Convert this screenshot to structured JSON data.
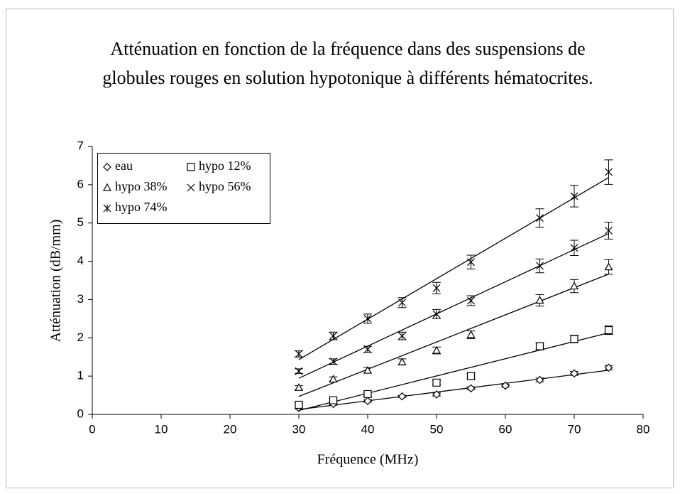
{
  "chart_data": {
    "type": "scatter",
    "title": "Atténuation en fonction de la fréquence dans des suspensions de globules rouges en solution hypotonique à différents hématocrites.",
    "xlabel": "Fréquence (MHz)",
    "ylabel": "Atténuation (dB/mm)",
    "xlim": [
      0,
      80
    ],
    "xticks": [
      0,
      10,
      20,
      30,
      40,
      50,
      60,
      70,
      80
    ],
    "ylim": [
      0,
      7
    ],
    "yticks": [
      0,
      1,
      2,
      3,
      4,
      5,
      6,
      7
    ],
    "trendline": "linear",
    "legend": "upper left",
    "color": "#000000",
    "series": [
      {
        "name": "eau",
        "marker": "diamond",
        "x": [
          30,
          35,
          40,
          45,
          50,
          55,
          60,
          65,
          70,
          75
        ],
        "values": [
          0.17,
          0.27,
          0.35,
          0.47,
          0.52,
          0.68,
          0.75,
          0.9,
          1.07,
          1.22
        ],
        "errors": [
          0.03,
          0.03,
          0.03,
          0.03,
          0.04,
          0.04,
          0.04,
          0.05,
          0.05,
          0.06
        ]
      },
      {
        "name": "hypo 12%",
        "marker": "square",
        "x": [
          30,
          35,
          40,
          50,
          55,
          65,
          70,
          75
        ],
        "values": [
          0.25,
          0.37,
          0.53,
          0.83,
          1.0,
          1.78,
          1.97,
          2.2
        ],
        "errors": [
          0.04,
          0.04,
          0.05,
          0.06,
          0.07,
          0.09,
          0.1,
          0.11
        ]
      },
      {
        "name": "hypo 38%",
        "marker": "triangle",
        "x": [
          30,
          35,
          40,
          45,
          50,
          55,
          65,
          70,
          75
        ],
        "values": [
          0.7,
          0.92,
          1.15,
          1.37,
          1.67,
          2.08,
          2.98,
          3.35,
          3.85
        ],
        "errors": [
          0.05,
          0.06,
          0.07,
          0.08,
          0.09,
          0.1,
          0.15,
          0.17,
          0.19
        ]
      },
      {
        "name": "hypo 56%",
        "marker": "cross",
        "x": [
          30,
          35,
          40,
          45,
          50,
          55,
          65,
          70,
          75
        ],
        "values": [
          1.13,
          1.38,
          1.7,
          2.05,
          2.62,
          2.97,
          3.88,
          4.35,
          4.8
        ],
        "errors": [
          0.06,
          0.07,
          0.08,
          0.1,
          0.12,
          0.13,
          0.18,
          0.2,
          0.22
        ]
      },
      {
        "name": "hypo 74%",
        "marker": "asterisk",
        "x": [
          30,
          35,
          40,
          45,
          50,
          55,
          65,
          70,
          75
        ],
        "values": [
          1.58,
          2.05,
          2.5,
          2.92,
          3.3,
          3.98,
          5.13,
          5.7,
          6.33
        ],
        "errors": [
          0.08,
          0.1,
          0.12,
          0.13,
          0.15,
          0.18,
          0.24,
          0.28,
          0.32
        ]
      }
    ]
  }
}
